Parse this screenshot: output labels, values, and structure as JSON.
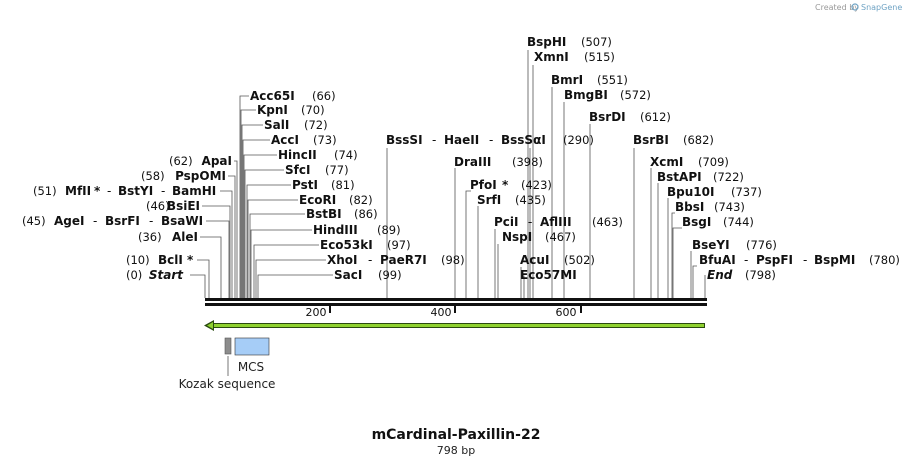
{
  "header": {
    "credit_prefix": "Created by",
    "brand": "SnapGene"
  },
  "title": "mCardinal-Paxillin-22",
  "subtitle": "798 bp",
  "sequence": {
    "length_bp": 798,
    "ticks": [
      {
        "label": "200"
      },
      {
        "label": "400"
      },
      {
        "label": "600"
      }
    ]
  },
  "sites": {
    "start": {
      "label": "Start",
      "pos": "(0)"
    },
    "bcli": {
      "label": "BclI",
      "star": "*",
      "pos": "(10)"
    },
    "alei": {
      "label": "AleI",
      "pos": "(36)"
    },
    "agei": {
      "label": "AgeI",
      "sep1": "-",
      "b": "BsrFI",
      "sep2": "-",
      "c": "BsaWI",
      "pos": "(45)"
    },
    "bsiei": {
      "label": "BsiEI",
      "pos": "(46)"
    },
    "mfli": {
      "label": "MfII",
      "star": "*",
      "sep1": "-",
      "b": "BstYI",
      "sep2": "-",
      "c": "BamHI",
      "pos": "(51)"
    },
    "pspomi": {
      "label": "PspOMI",
      "pos": "(58)"
    },
    "apai": {
      "label": "ApaI",
      "pos": "(62)"
    },
    "acc65i": {
      "label": "Acc65I",
      "pos": "(66)"
    },
    "kpni": {
      "label": "KpnI",
      "pos": "(70)"
    },
    "sali": {
      "label": "SalI",
      "pos": "(72)"
    },
    "acci": {
      "label": "AccI",
      "pos": "(73)"
    },
    "hincii": {
      "label": "HincII",
      "pos": "(74)"
    },
    "sfci": {
      "label": "SfcI",
      "pos": "(77)"
    },
    "psti": {
      "label": "PstI",
      "pos": "(81)"
    },
    "ecori": {
      "label": "EcoRI",
      "pos": "(82)"
    },
    "bstbi": {
      "label": "BstBI",
      "pos": "(86)"
    },
    "hindiii": {
      "label": "HindIII",
      "pos": "(89)"
    },
    "eco53ki": {
      "label": "Eco53kI",
      "pos": "(97)"
    },
    "xhoi": {
      "label": "XhoI",
      "sep1": "-",
      "b": "PaeR7I",
      "pos": "(98)"
    },
    "saci": {
      "label": "SacI",
      "pos": "(99)"
    },
    "bsssi": {
      "label": "BssSI",
      "sep1": "-",
      "b": "HaeII",
      "sep2": "-",
      "c": "BssSαI",
      "pos": "(290)"
    },
    "draiii": {
      "label": "DraIII",
      "pos": "(398)"
    },
    "pfoi": {
      "label": "PfoI",
      "star": "*",
      "pos": "(423)"
    },
    "srfi": {
      "label": "SrfI",
      "pos": "(435)"
    },
    "pcii": {
      "label": "PciI",
      "sep1": "-",
      "b": "AflIII",
      "pos": "(463)"
    },
    "nspi": {
      "label": "NspI",
      "pos": "(467)"
    },
    "acui": {
      "label": "AcuI",
      "pos": "(502)"
    },
    "eco57mi": {
      "label": "Eco57MI",
      "pos": ""
    },
    "bsphi": {
      "label": "BspHI",
      "pos": "(507)"
    },
    "xmni": {
      "label": "XmnI",
      "pos": "(515)"
    },
    "bmri": {
      "label": "BmrI",
      "pos": "(551)"
    },
    "bmgbi": {
      "label": "BmgBI",
      "pos": "(572)"
    },
    "bsrdi": {
      "label": "BsrDI",
      "pos": "(612)"
    },
    "bsrbi": {
      "label": "BsrBI",
      "pos": "(682)"
    },
    "xcmi": {
      "label": "XcmI",
      "pos": "(709)"
    },
    "bstapi": {
      "label": "BstAPI",
      "pos": "(722)"
    },
    "bpu10i": {
      "label": "Bpu10I",
      "pos": "(737)"
    },
    "bbsi": {
      "label": "BbsI",
      "pos": "(743)"
    },
    "bsgi": {
      "label": "BsgI",
      "pos": "(744)"
    },
    "bseyi": {
      "label": "BseYI",
      "pos": "(776)"
    },
    "bfuai": {
      "label": "BfuAI",
      "sep1": "-",
      "b": "PspFI",
      "sep2": "-",
      "c": "BspMI",
      "pos": "(780)"
    },
    "end": {
      "label": "End",
      "pos": "(798)"
    }
  },
  "features": {
    "mcs": {
      "label": "MCS"
    },
    "kozak": {
      "label": "Kozak sequence"
    }
  },
  "colors": {
    "orf_arrow": "#8fd12f",
    "mcs_box": "#a6cdf7",
    "kozak_box": "#8c8c8c",
    "backbone": "#111111",
    "brand": "#6fa3c4"
  }
}
